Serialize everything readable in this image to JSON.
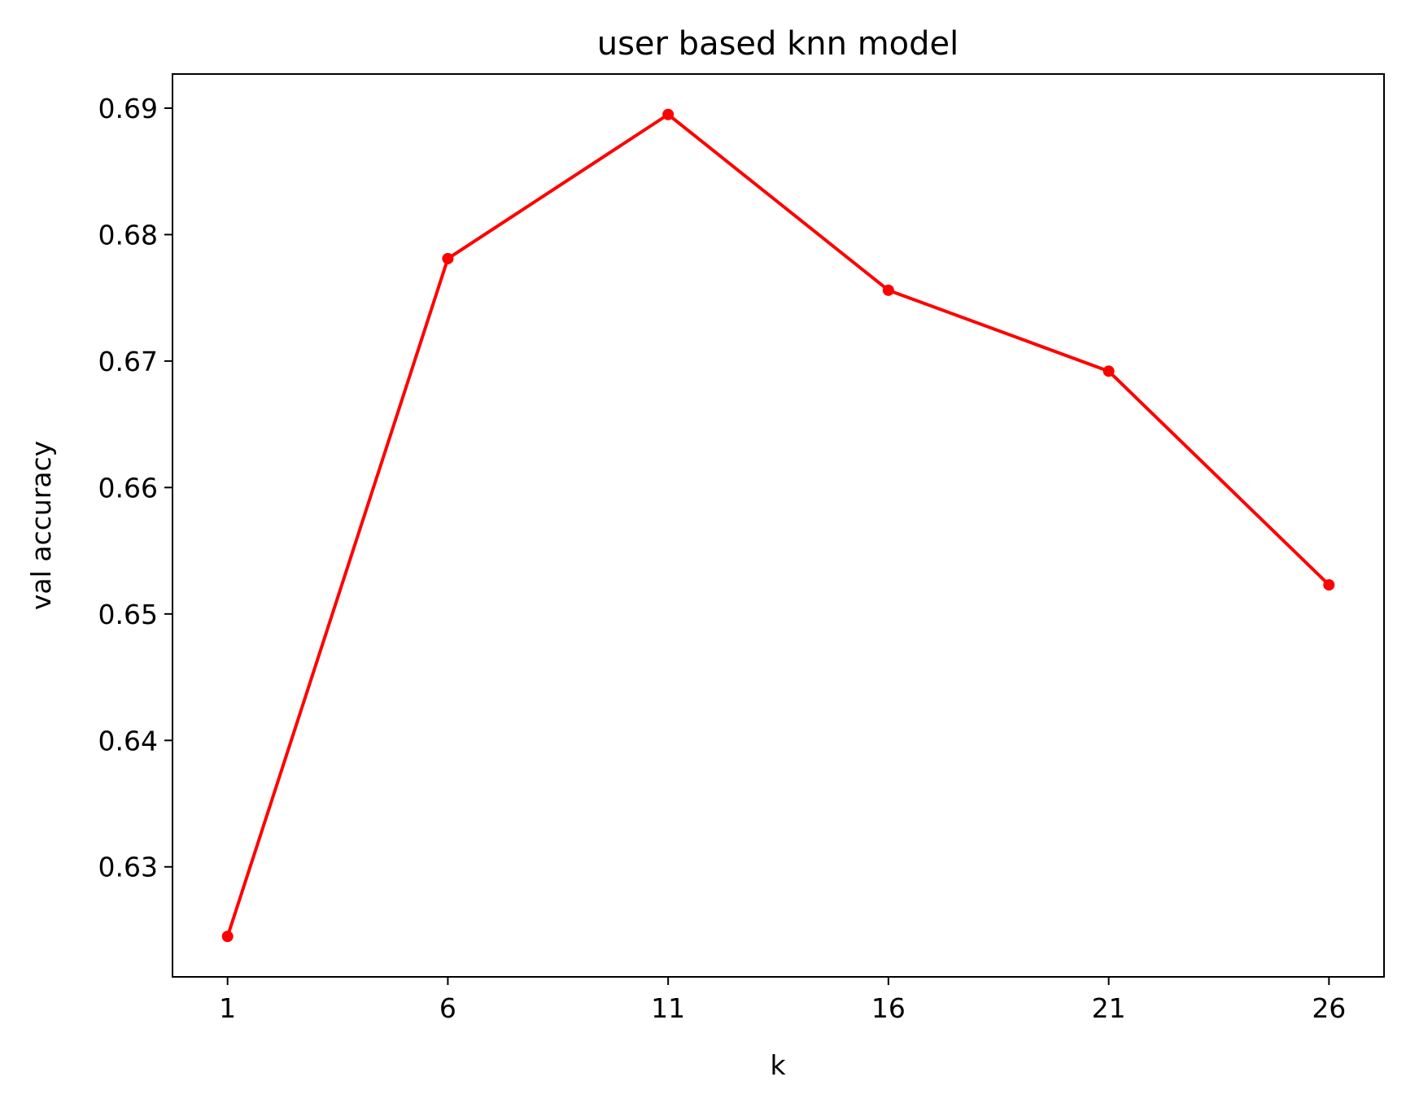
{
  "chart_data": {
    "type": "line",
    "title": "user based knn model",
    "xlabel": "k",
    "ylabel": "val accuracy",
    "x": [
      1,
      6,
      11,
      16,
      21,
      26
    ],
    "series": [
      {
        "values": [
          0.6245,
          0.6781,
          0.6895,
          0.6756,
          0.6692,
          0.6523
        ],
        "color": "#ff0000"
      }
    ],
    "xticks": [
      1,
      6,
      11,
      16,
      21,
      26
    ],
    "yticks": [
      0.63,
      0.64,
      0.65,
      0.66,
      0.67,
      0.68,
      0.69
    ],
    "xlim": [
      -0.25,
      27.25
    ],
    "ylim": [
      0.6213,
      0.6927
    ],
    "grid": false,
    "markers": true
  }
}
